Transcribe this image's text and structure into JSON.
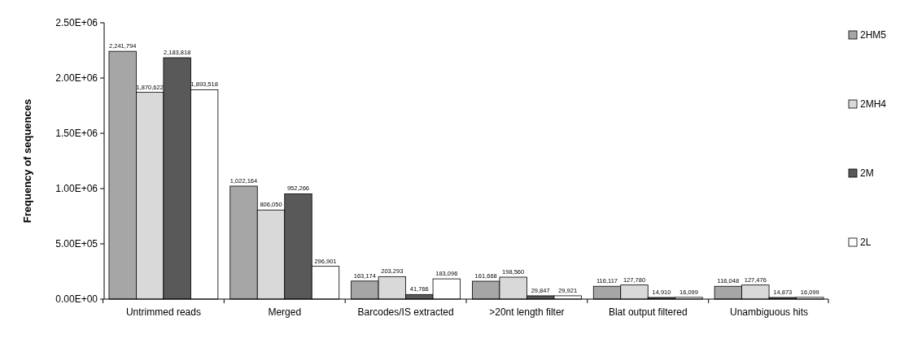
{
  "chart_data": {
    "type": "bar",
    "ylabel": "Frequency of sequences",
    "categories": [
      "Untrimmed reads",
      "Merged",
      "Barcodes/IS extracted",
      ">20nt length filter",
      "Blat output filtered",
      "Unambiguous hits"
    ],
    "series": [
      {
        "name": "2HM5",
        "color": "#a6a6a6",
        "values": [
          2241794,
          1022164,
          163174,
          161668,
          116117,
          116048
        ],
        "value_labels": [
          "2,241,794",
          "1,022,164",
          "163,174",
          "161,668",
          "116,117",
          "116,048"
        ]
      },
      {
        "name": "2MH4",
        "color": "#d9d9d9",
        "values": [
          1870622,
          806050,
          203293,
          198560,
          127780,
          127476
        ],
        "value_labels": [
          "1,870,622",
          "806,050",
          "203,293",
          "198,560",
          "127,780",
          "127,476"
        ]
      },
      {
        "name": "2M",
        "color": "#595959",
        "values": [
          2183818,
          952266,
          41766,
          29847,
          14910,
          14873
        ],
        "value_labels": [
          "2,183,818",
          "952,266",
          "41,766",
          "29,847",
          "14,910",
          "14,873"
        ]
      },
      {
        "name": "2L",
        "color": "#ffffff",
        "values": [
          1893518,
          296901,
          183096,
          29921,
          16099,
          16099
        ],
        "value_labels": [
          "1,893,518",
          "296,901",
          "183,096",
          "29,921",
          "16,099",
          "16,099"
        ]
      }
    ],
    "ylim": [
      0,
      2500000
    ],
    "yticks": [
      {
        "value": 0,
        "label": "0.00E+00"
      },
      {
        "value": 500000,
        "label": "5.00E+05"
      },
      {
        "value": 1000000,
        "label": "1.00E+06"
      },
      {
        "value": 1500000,
        "label": "1.50E+06"
      },
      {
        "value": 2000000,
        "label": "2.00E+06"
      },
      {
        "value": 2500000,
        "label": "2.50E+06"
      }
    ],
    "grid": false,
    "legend": "right"
  }
}
